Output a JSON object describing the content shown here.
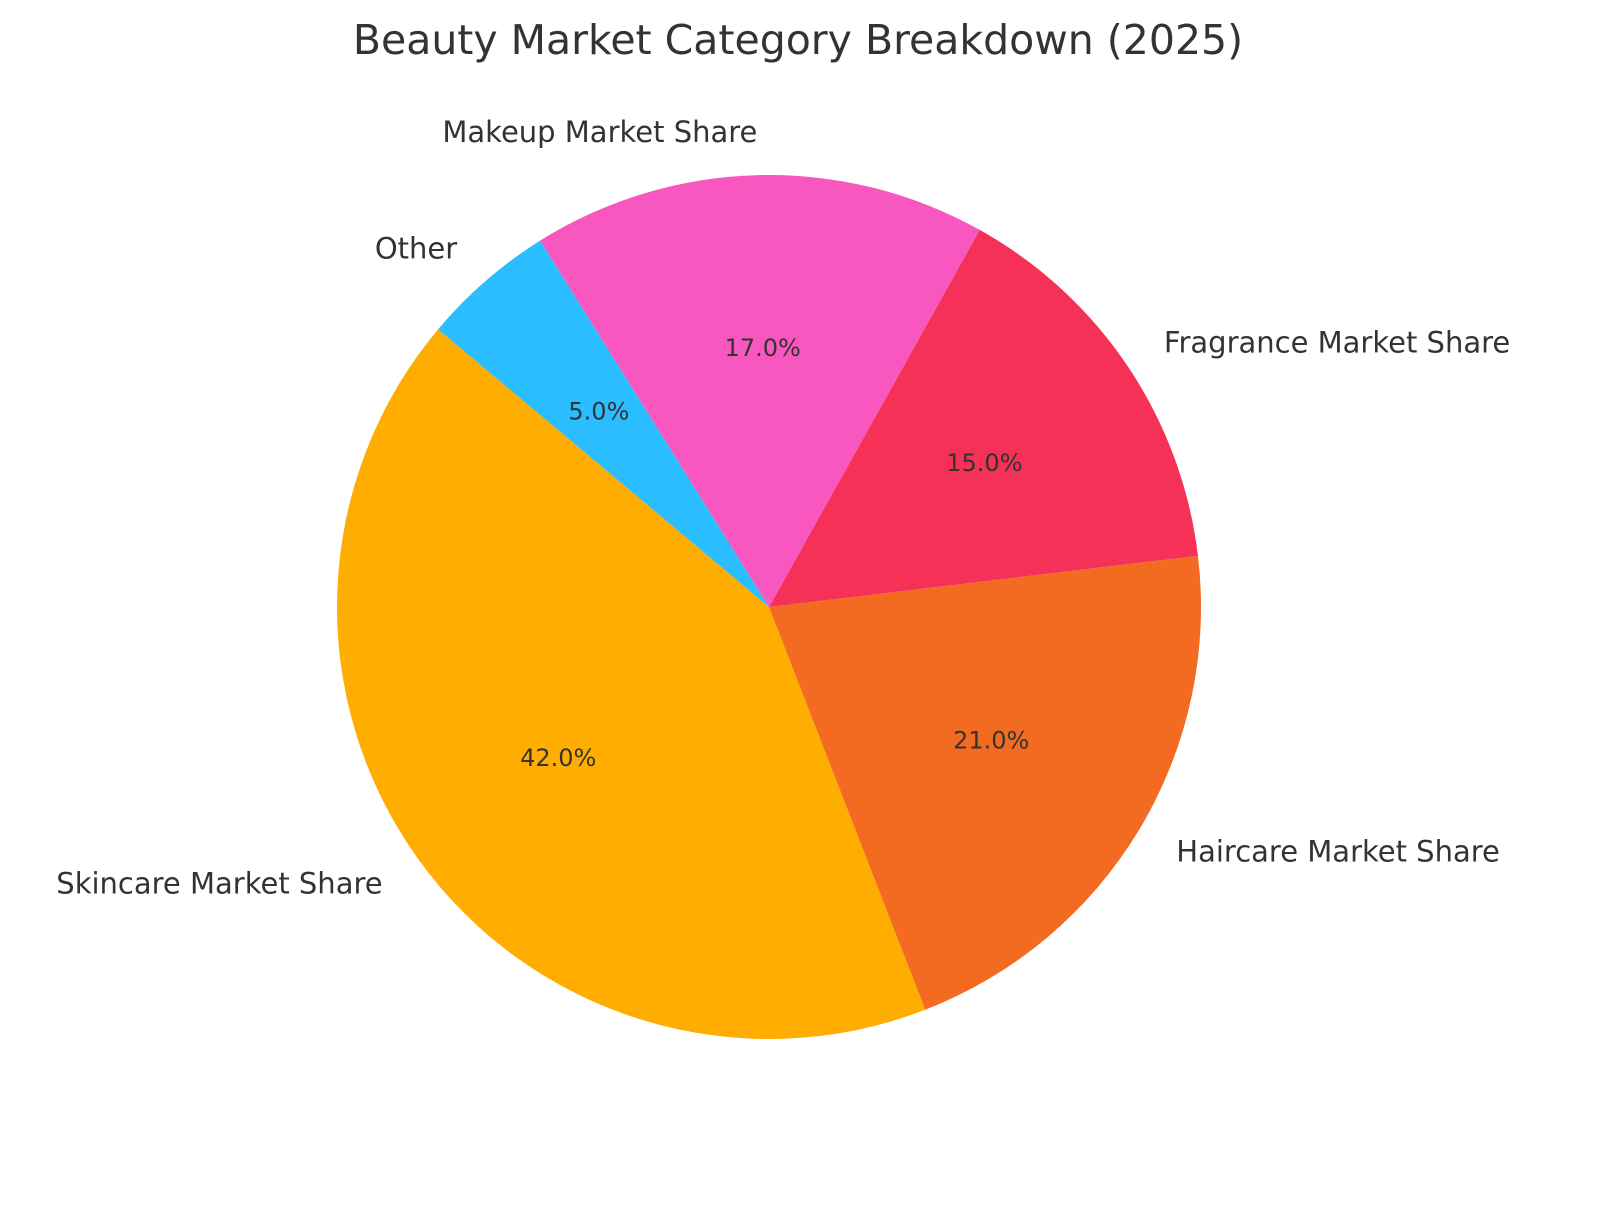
{
  "chart_data": {
    "type": "pie",
    "title": "Beauty Market Category Breakdown (2025)",
    "start_angle_deg": 140,
    "direction": "counterclockwise",
    "slices": [
      {
        "label": "Skincare Market Share",
        "value": 42.0,
        "pct_label": "42.0%",
        "color": "#FFAD00"
      },
      {
        "label": "Haircare Market Share",
        "value": 21.0,
        "pct_label": "21.0%",
        "color": "#F36B21"
      },
      {
        "label": "Fragrance Market Share",
        "value": 15.0,
        "pct_label": "15.0%",
        "color": "#F53157"
      },
      {
        "label": "Makeup Market Share",
        "value": 17.0,
        "pct_label": "17.0%",
        "color": "#F757BE"
      },
      {
        "label": "Other",
        "value": 5.0,
        "pct_label": "5.0%",
        "color": "#2ABDFF"
      }
    ]
  }
}
